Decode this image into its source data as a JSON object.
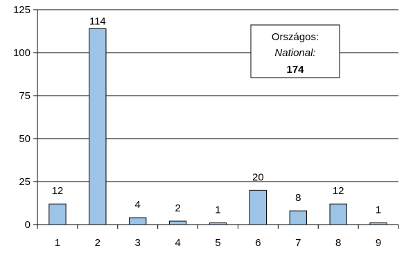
{
  "chart_data": {
    "type": "bar",
    "categories": [
      "1",
      "2",
      "3",
      "4",
      "5",
      "6",
      "7",
      "8",
      "9"
    ],
    "values": [
      12,
      114,
      4,
      2,
      1,
      20,
      8,
      12,
      1
    ],
    "data_labels": [
      "12",
      "114",
      "4",
      "2",
      "1",
      "20",
      "8",
      "12",
      "1"
    ],
    "title": "",
    "xlabel": "",
    "ylabel": "",
    "ylim": [
      0,
      125
    ],
    "yticks": [
      0,
      25,
      50,
      75,
      100,
      125
    ],
    "grid": true,
    "bar_color": "#9dc3e6",
    "annotation": {
      "line1": "Országos:",
      "line2": "National:",
      "line3": "174"
    }
  }
}
